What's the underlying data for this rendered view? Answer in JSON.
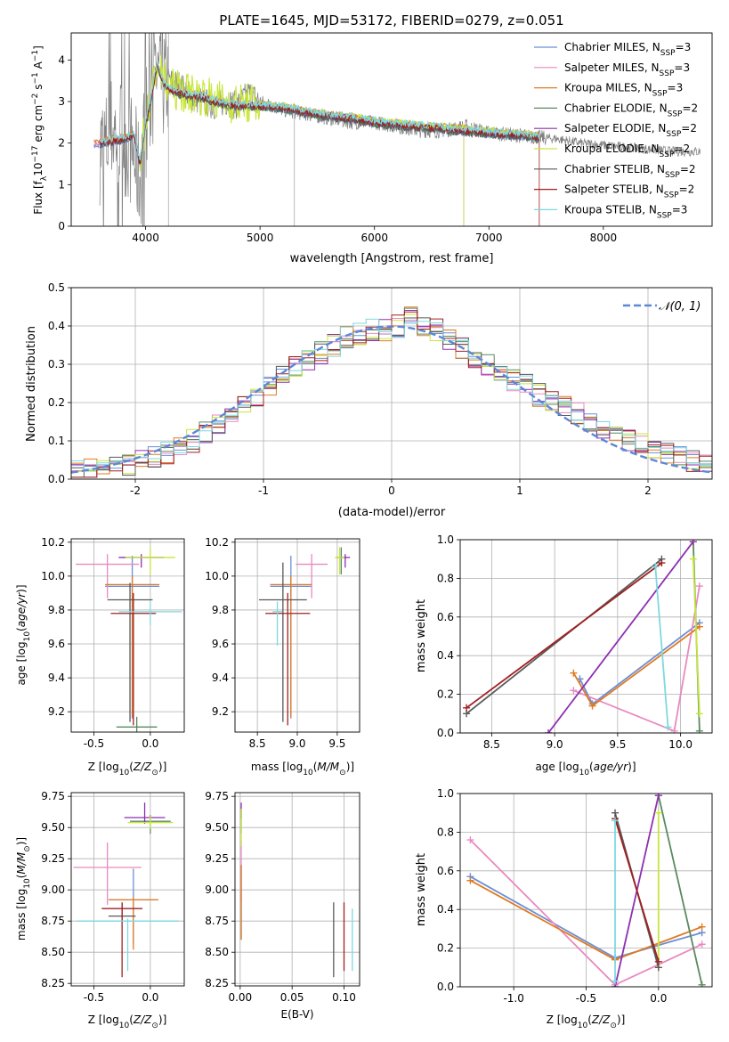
{
  "figure": {
    "title": "PLATE=1645, MJD=53172, FIBERID=0279, z=0.051"
  },
  "series_styles": [
    {
      "name": "Chabrier MILES",
      "nssp": "3",
      "color": "#6b8fd6"
    },
    {
      "name": "Salpeter MILES",
      "nssp": "3",
      "color": "#e88ac0"
    },
    {
      "name": "Kroupa MILES",
      "nssp": "3",
      "color": "#e07b22"
    },
    {
      "name": "Chabrier ELODIE",
      "nssp": "2",
      "color": "#5a8a5e"
    },
    {
      "name": "Salpeter ELODIE",
      "nssp": "2",
      "color": "#8e2fb0"
    },
    {
      "name": "Kroupa ELODIE",
      "nssp": "2",
      "color": "#c8e63c"
    },
    {
      "name": "Chabrier STELIB",
      "nssp": "2",
      "color": "#5a5a5a"
    },
    {
      "name": "Salpeter STELIB",
      "nssp": "2",
      "color": "#a02020"
    },
    {
      "name": "Kroupa STELIB",
      "nssp": "3",
      "color": "#7fd8e0"
    }
  ],
  "colors": {
    "data_gray": "#808080",
    "gaussian": "#5b87d8",
    "grid": "#b0b0b0"
  },
  "chart_data": [
    {
      "id": "spectrum",
      "type": "line",
      "xlabel": "wavelength [Angstrom, rest frame]",
      "ylabel": "Flux [f$_{\\lambda}$10$^{-17}$ erg cm$^{-2}$ s$^{-1}$ A$^{-1}$]",
      "xlim": [
        3350,
        8950
      ],
      "ylim": [
        0,
        4.65
      ],
      "xticks": [
        4000,
        5000,
        6000,
        7000,
        8000
      ],
      "yticks": [
        0,
        1,
        2,
        3,
        4
      ],
      "grid": false,
      "legend": "upper right",
      "data_x": [
        3650,
        3700,
        3800,
        3900,
        3950,
        4000,
        4050,
        4100,
        4150,
        4200,
        4300,
        4400,
        4500,
        4600,
        4700,
        4800,
        4900,
        5000,
        5200,
        5400,
        5600,
        5800,
        6000,
        6200,
        6400,
        6600,
        6800,
        7000,
        7200,
        7400,
        7600,
        7800,
        8000,
        8200,
        8400,
        8600
      ],
      "data_y": [
        1.9,
        2.3,
        2.2,
        1.7,
        1.1,
        2.5,
        3.0,
        3.6,
        3.4,
        3.5,
        3.4,
        3.1,
        3.0,
        2.9,
        3.0,
        2.9,
        3.2,
        3.0,
        2.8,
        2.7,
        2.6,
        2.5,
        2.5,
        2.4,
        2.3,
        2.3,
        2.4,
        2.25,
        2.2,
        2.15,
        2.1,
        2.0,
        1.95,
        1.9,
        1.85,
        1.8
      ],
      "model_x": [
        3600,
        3700,
        3800,
        3900,
        3950,
        4000,
        4050,
        4100,
        4150,
        4200,
        4300,
        4400,
        4500,
        4600,
        4800,
        5000,
        5200,
        5400,
        5600,
        5800,
        6000,
        6200,
        6400,
        6600,
        6800,
        7000,
        7200,
        7440
      ],
      "model_y": [
        2.0,
        2.05,
        2.1,
        2.2,
        1.5,
        2.5,
        3.1,
        3.9,
        3.5,
        3.3,
        3.2,
        3.15,
        3.1,
        3.0,
        2.9,
        2.9,
        2.85,
        2.75,
        2.65,
        2.6,
        2.5,
        2.45,
        2.4,
        2.35,
        2.3,
        2.25,
        2.2,
        2.15
      ]
    },
    {
      "id": "residuals",
      "type": "bar",
      "xlabel": "(data-model)/error",
      "ylabel": "Normed distribution",
      "xlim": [
        -2.5,
        2.5
      ],
      "ylim": [
        0,
        0.5
      ],
      "xticks": [
        -2,
        -1,
        0,
        1,
        2
      ],
      "yticks": [
        0.0,
        0.1,
        0.2,
        0.3,
        0.4,
        0.5
      ],
      "grid": true,
      "legend": "upper right",
      "gaussian_label": "$\\mathcal{N}(0,1)$",
      "bin_width": 0.1,
      "bin_centers": [
        -2.45,
        -2.35,
        -2.25,
        -2.15,
        -2.05,
        -1.95,
        -1.85,
        -1.75,
        -1.65,
        -1.55,
        -1.45,
        -1.35,
        -1.25,
        -1.15,
        -1.05,
        -0.95,
        -0.85,
        -0.75,
        -0.65,
        -0.55,
        -0.45,
        -0.35,
        -0.25,
        -0.15,
        -0.05,
        0.05,
        0.15,
        0.25,
        0.35,
        0.45,
        0.55,
        0.65,
        0.75,
        0.85,
        0.95,
        1.05,
        1.15,
        1.25,
        1.35,
        1.45,
        1.55,
        1.65,
        1.75,
        1.85,
        1.95,
        2.05,
        2.15,
        2.25,
        2.35,
        2.45
      ],
      "base_hist": [
        0.02,
        0.025,
        0.03,
        0.035,
        0.04,
        0.045,
        0.06,
        0.07,
        0.08,
        0.1,
        0.12,
        0.14,
        0.17,
        0.19,
        0.21,
        0.24,
        0.27,
        0.29,
        0.31,
        0.33,
        0.35,
        0.37,
        0.38,
        0.39,
        0.39,
        0.4,
        0.42,
        0.4,
        0.39,
        0.36,
        0.34,
        0.32,
        0.3,
        0.28,
        0.26,
        0.25,
        0.22,
        0.2,
        0.19,
        0.17,
        0.15,
        0.13,
        0.12,
        0.1,
        0.09,
        0.08,
        0.07,
        0.06,
        0.045,
        0.045
      ]
    },
    {
      "id": "age_vs_Z",
      "type": "scatter",
      "xlabel": "Z [log$_{10}$(Z/Z$_{\\odot}$)]",
      "ylabel": "age  [log$_{10}$(age/yr)]",
      "xlim": [
        -0.7,
        0.3
      ],
      "ylim": [
        9.08,
        10.22
      ],
      "xticks": [
        -0.5,
        0.0
      ],
      "yticks": [
        9.2,
        9.4,
        9.6,
        9.8,
        10.0,
        10.2
      ],
      "grid": true,
      "points": [
        {
          "x": -0.16,
          "y": 9.94,
          "xerr": 0.24,
          "yerr_lo": 0.78,
          "yerr_hi": 0.18
        },
        {
          "x": -0.38,
          "y": 10.07,
          "xerr": 0.28,
          "yerr_lo": 0.2,
          "yerr_hi": 0.06
        },
        {
          "x": -0.16,
          "y": 9.95,
          "xerr": 0.24,
          "yerr_lo": 0.78,
          "yerr_hi": 0.05
        },
        {
          "x": -0.12,
          "y": 9.11,
          "xerr": 0.18,
          "yerr_lo": 0.1,
          "yerr_hi": 0.06
        },
        {
          "x": -0.08,
          "y": 10.11,
          "xerr": 0.2,
          "yerr_lo": 0.06,
          "yerr_hi": 0.02
        },
        {
          "x": 0.0,
          "y": 10.11,
          "xerr": 0.22,
          "yerr_lo": 0.1,
          "yerr_hi": 0.06
        },
        {
          "x": -0.18,
          "y": 9.86,
          "xerr": 0.2,
          "yerr_lo": 0.72,
          "yerr_hi": 0.1
        },
        {
          "x": -0.15,
          "y": 9.78,
          "xerr": 0.2,
          "yerr_lo": 0.66,
          "yerr_hi": 0.12
        },
        {
          "x": 0.0,
          "y": 9.79,
          "xerr": 0.28,
          "yerr_lo": 0.08,
          "yerr_hi": 0.06
        }
      ]
    },
    {
      "id": "age_vs_mass",
      "type": "scatter",
      "xlabel": "mass [log$_{10}$(M/M$_{\\odot}$)]",
      "ylabel": "",
      "xlim": [
        8.22,
        9.78
      ],
      "ylim": [
        9.08,
        10.22
      ],
      "xticks": [
        8.5,
        9.0,
        9.5
      ],
      "yticks": [
        9.2,
        9.4,
        9.6,
        9.8,
        10.0,
        10.2
      ],
      "grid": true,
      "points": [
        {
          "x": 8.92,
          "y": 9.94,
          "xerr": 0.26,
          "yerr_lo": 0.78,
          "yerr_hi": 0.18
        },
        {
          "x": 9.18,
          "y": 10.07,
          "xerr": 0.2,
          "yerr_lo": 0.2,
          "yerr_hi": 0.06
        },
        {
          "x": 8.92,
          "y": 9.95,
          "xerr": 0.26,
          "yerr_lo": 0.78,
          "yerr_hi": 0.05
        },
        {
          "x": 9.55,
          "y": 10.11,
          "xerr": 0.06,
          "yerr_lo": 0.1,
          "yerr_hi": 0.06
        },
        {
          "x": 9.6,
          "y": 10.11,
          "xerr": 0.06,
          "yerr_lo": 0.06,
          "yerr_hi": 0.02
        },
        {
          "x": 9.53,
          "y": 10.11,
          "xerr": 0.06,
          "yerr_lo": 0.1,
          "yerr_hi": 0.06
        },
        {
          "x": 8.82,
          "y": 9.86,
          "xerr": 0.3,
          "yerr_lo": 0.72,
          "yerr_hi": 0.22
        },
        {
          "x": 8.88,
          "y": 9.78,
          "xerr": 0.28,
          "yerr_lo": 0.66,
          "yerr_hi": 0.12
        },
        {
          "x": 8.75,
          "y": 9.79,
          "xerr": 0.06,
          "yerr_lo": 0.2,
          "yerr_hi": 0.06
        }
      ]
    },
    {
      "id": "weight_vs_age",
      "type": "line",
      "xlabel": "age  [log$_{10}$(age/yr)]",
      "ylabel": "mass weight",
      "xlim": [
        8.25,
        10.25
      ],
      "ylim": [
        0,
        1
      ],
      "xticks": [
        8.5,
        9.0,
        9.5,
        10.0
      ],
      "yticks": [
        0.0,
        0.2,
        0.4,
        0.6,
        0.8,
        1.0
      ],
      "grid": true,
      "series": [
        {
          "x": [
            9.2,
            9.3,
            10.15
          ],
          "y": [
            0.28,
            0.15,
            0.57
          ]
        },
        {
          "x": [
            9.15,
            9.95,
            10.15
          ],
          "y": [
            0.22,
            0.01,
            0.76
          ]
        },
        {
          "x": [
            9.15,
            9.3,
            10.15
          ],
          "y": [
            0.31,
            0.14,
            0.55
          ]
        },
        {
          "x": [
            10.1,
            10.15
          ],
          "y": [
            0.99,
            0.01
          ]
        },
        {
          "x": [
            8.95,
            10.1
          ],
          "y": [
            0.0,
            0.99
          ]
        },
        {
          "x": [
            10.1,
            10.15
          ],
          "y": [
            0.9,
            0.1
          ]
        },
        {
          "x": [
            8.3,
            9.85
          ],
          "y": [
            0.1,
            0.9
          ]
        },
        {
          "x": [
            8.3,
            9.85
          ],
          "y": [
            0.13,
            0.88
          ]
        },
        {
          "x": [
            9.8,
            9.9
          ],
          "y": [
            0.86,
            0.03
          ]
        }
      ]
    },
    {
      "id": "mass_vs_Z",
      "type": "scatter",
      "xlabel": "Z [log$_{10}$(Z/Z$_{\\odot}$)]",
      "ylabel": "mass [log$_{10}$(M/M$_{\\odot}$)]",
      "xlim": [
        -0.7,
        0.3
      ],
      "ylim": [
        8.23,
        9.78
      ],
      "xticks": [
        -0.5,
        0.0
      ],
      "yticks": [
        8.25,
        8.5,
        8.75,
        9.0,
        9.25,
        9.5,
        9.75
      ],
      "grid": true,
      "points": [
        {
          "x": -0.15,
          "y": 8.92,
          "xerr": 0.22,
          "yerr_lo": 0.35,
          "yerr_hi": 0.25
        },
        {
          "x": -0.38,
          "y": 9.18,
          "xerr": 0.3,
          "yerr_lo": 0.3,
          "yerr_hi": 0.2
        },
        {
          "x": -0.15,
          "y": 8.92,
          "xerr": 0.22,
          "yerr_lo": 0.4,
          "yerr_hi": 0.02
        },
        {
          "x": 0.0,
          "y": 9.55,
          "xerr": 0.18,
          "yerr_lo": 0.1,
          "yerr_hi": 0.05
        },
        {
          "x": -0.05,
          "y": 9.58,
          "xerr": 0.18,
          "yerr_lo": 0.05,
          "yerr_hi": 0.12
        },
        {
          "x": 0.0,
          "y": 9.54,
          "xerr": 0.2,
          "yerr_lo": 0.05,
          "yerr_hi": 0.05
        },
        {
          "x": -0.25,
          "y": 8.79,
          "xerr": 0.12,
          "yerr_lo": 0.05,
          "yerr_hi": 0.1
        },
        {
          "x": -0.25,
          "y": 8.85,
          "xerr": 0.18,
          "yerr_lo": 0.55,
          "yerr_hi": 0.05
        },
        {
          "x": -0.2,
          "y": 8.75,
          "xerr": 0.45,
          "yerr_lo": 0.4,
          "yerr_hi": 0.02
        }
      ]
    },
    {
      "id": "mass_vs_ebv",
      "type": "scatter",
      "xlabel": "E(B-V)",
      "ylabel": "",
      "xlim": [
        -0.005,
        0.115
      ],
      "ylim": [
        8.23,
        9.78
      ],
      "xticks": [
        0.0,
        0.05,
        0.1
      ],
      "yticks": [
        8.25,
        8.5,
        8.75,
        9.0,
        9.25,
        9.5,
        9.75
      ],
      "grid": true,
      "points": [
        {
          "x": 0.001,
          "y": 8.9,
          "xerr": 0,
          "yerr_lo": 0.3,
          "yerr_hi": 0.3
        },
        {
          "x": 0.001,
          "y": 9.1,
          "xerr": 0,
          "yerr_lo": 0.2,
          "yerr_hi": 0.3
        },
        {
          "x": 0.001,
          "y": 8.9,
          "xerr": 0,
          "yerr_lo": 0.3,
          "yerr_hi": 0.3
        },
        {
          "x": 0.001,
          "y": 9.55,
          "xerr": 0,
          "yerr_lo": 0.1,
          "yerr_hi": 0.1
        },
        {
          "x": 0.001,
          "y": 9.62,
          "xerr": 0,
          "yerr_lo": 0.05,
          "yerr_hi": 0.08
        },
        {
          "x": 0.001,
          "y": 9.5,
          "xerr": 0,
          "yerr_lo": 0.15,
          "yerr_hi": 0.15
        },
        {
          "x": 0.09,
          "y": 8.6,
          "xerr": 0,
          "yerr_lo": 0.3,
          "yerr_hi": 0.3
        },
        {
          "x": 0.1,
          "y": 8.65,
          "xerr": 0,
          "yerr_lo": 0.3,
          "yerr_hi": 0.25
        },
        {
          "x": 0.108,
          "y": 8.6,
          "xerr": 0,
          "yerr_lo": 0.25,
          "yerr_hi": 0.25
        }
      ]
    },
    {
      "id": "weight_vs_Z",
      "type": "line",
      "xlabel": "Z [log$_{10}$(Z/Z$_{\\odot}$)]",
      "ylabel": "mass weight",
      "xlim": [
        -1.37,
        0.37
      ],
      "ylim": [
        0,
        1
      ],
      "xticks": [
        -1.0,
        -0.5,
        0.0
      ],
      "yticks": [
        0.0,
        0.2,
        0.4,
        0.6,
        0.8,
        1.0
      ],
      "grid": true,
      "series": [
        {
          "x": [
            -1.3,
            -0.3,
            0.3
          ],
          "y": [
            0.57,
            0.15,
            0.28
          ]
        },
        {
          "x": [
            -1.3,
            -0.3,
            0.3
          ],
          "y": [
            0.76,
            0.01,
            0.22
          ]
        },
        {
          "x": [
            -1.3,
            -0.3,
            0.3
          ],
          "y": [
            0.55,
            0.14,
            0.31
          ]
        },
        {
          "x": [
            0.0,
            0.3
          ],
          "y": [
            0.99,
            0.01
          ]
        },
        {
          "x": [
            -0.3,
            0.0
          ],
          "y": [
            0.0,
            0.99
          ]
        },
        {
          "x": [
            0.0,
            0.0
          ],
          "y": [
            0.9,
            0.1
          ]
        },
        {
          "x": [
            -0.3,
            0.0
          ],
          "y": [
            0.9,
            0.1
          ]
        },
        {
          "x": [
            -0.3,
            0.0
          ],
          "y": [
            0.87,
            0.13
          ]
        },
        {
          "x": [
            -0.3,
            -0.3
          ],
          "y": [
            0.86,
            0.03
          ]
        }
      ]
    }
  ]
}
